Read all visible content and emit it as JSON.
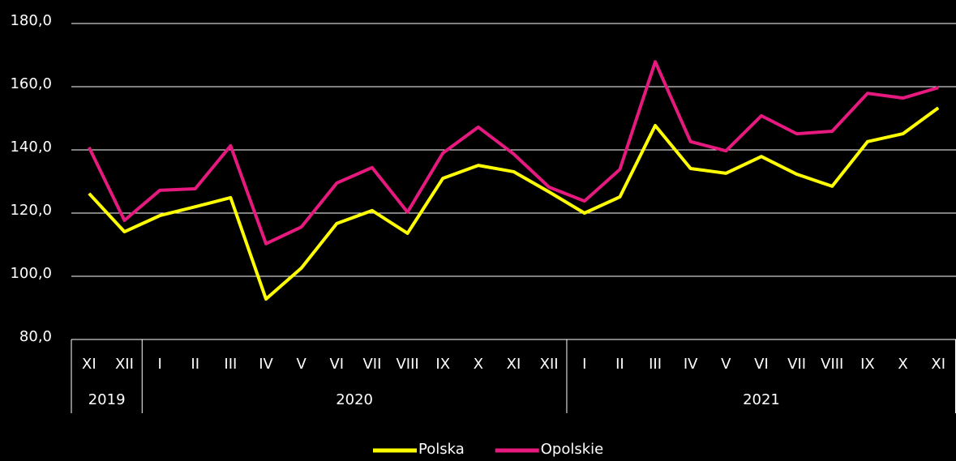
{
  "chart_data": {
    "type": "line",
    "groups": [
      {
        "label": "2019",
        "categories": [
          "XI",
          "XII"
        ]
      },
      {
        "label": "2020",
        "categories": [
          "I",
          "II",
          "III",
          "IV",
          "V",
          "VI",
          "VII",
          "VIII",
          "IX",
          "X",
          "XI",
          "XII"
        ]
      },
      {
        "label": "2021",
        "categories": [
          "I",
          "II",
          "III",
          "IV",
          "V",
          "VI",
          "VII",
          "VIII",
          "IX",
          "X",
          "XI"
        ]
      }
    ],
    "series": [
      {
        "name": "Polska",
        "color": "#ffff00",
        "values": [
          126.2,
          114.1,
          119.2,
          122.0,
          124.9,
          92.8,
          102.6,
          116.7,
          120.8,
          113.6,
          131.0,
          135.1,
          133.1,
          126.7,
          120.0,
          125.1,
          147.7,
          134.1,
          132.6,
          137.9,
          132.3,
          128.5,
          142.6,
          145.1,
          153.3
        ]
      },
      {
        "name": "Opolskie",
        "color": "#e6197f",
        "values": [
          140.8,
          117.7,
          127.2,
          127.7,
          141.3,
          110.3,
          115.6,
          129.5,
          134.4,
          120.3,
          139.0,
          147.2,
          138.7,
          128.2,
          123.8,
          133.8,
          167.9,
          142.6,
          139.7,
          150.8,
          145.1,
          145.9,
          157.9,
          156.4,
          159.7
        ]
      }
    ],
    "ylim": [
      80,
      180
    ],
    "yticks": [
      {
        "value": 80,
        "label": "80,0"
      },
      {
        "value": 100,
        "label": "100,0"
      },
      {
        "value": 120,
        "label": "120,0"
      },
      {
        "value": 140,
        "label": "140,0"
      },
      {
        "value": 160,
        "label": "160,0"
      },
      {
        "value": 180,
        "label": "180,0"
      }
    ],
    "grid": true,
    "legend": "bottom"
  }
}
